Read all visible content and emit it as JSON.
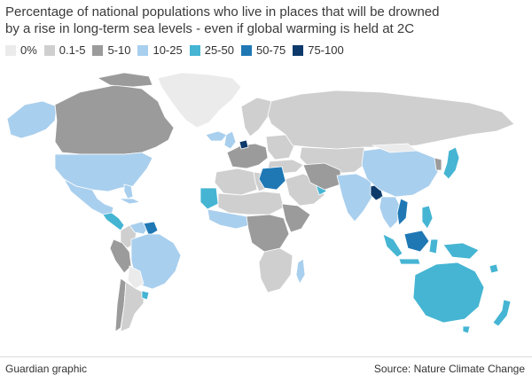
{
  "title": {
    "line1": "Percentage of national populations who live in places that will be drowned",
    "line2": "by a rise in long-term sea levels - even if global warming is held at 2C"
  },
  "legend": [
    {
      "label": "0%",
      "color": "#ebebeb"
    },
    {
      "label": "0.1-5",
      "color": "#cfcfcf"
    },
    {
      "label": "5-10",
      "color": "#9b9b9b"
    },
    {
      "label": "10-25",
      "color": "#a9cfee"
    },
    {
      "label": "25-50",
      "color": "#45b5d3"
    },
    {
      "label": "50-75",
      "color": "#1f78b4"
    },
    {
      "label": "75-100",
      "color": "#0d3a6b"
    }
  ],
  "map": {
    "ocean_color": "#ffffff",
    "border_color": "#ffffff"
  },
  "footer": {
    "left": "Guardian graphic",
    "right": "Source: Nature Climate Change"
  }
}
